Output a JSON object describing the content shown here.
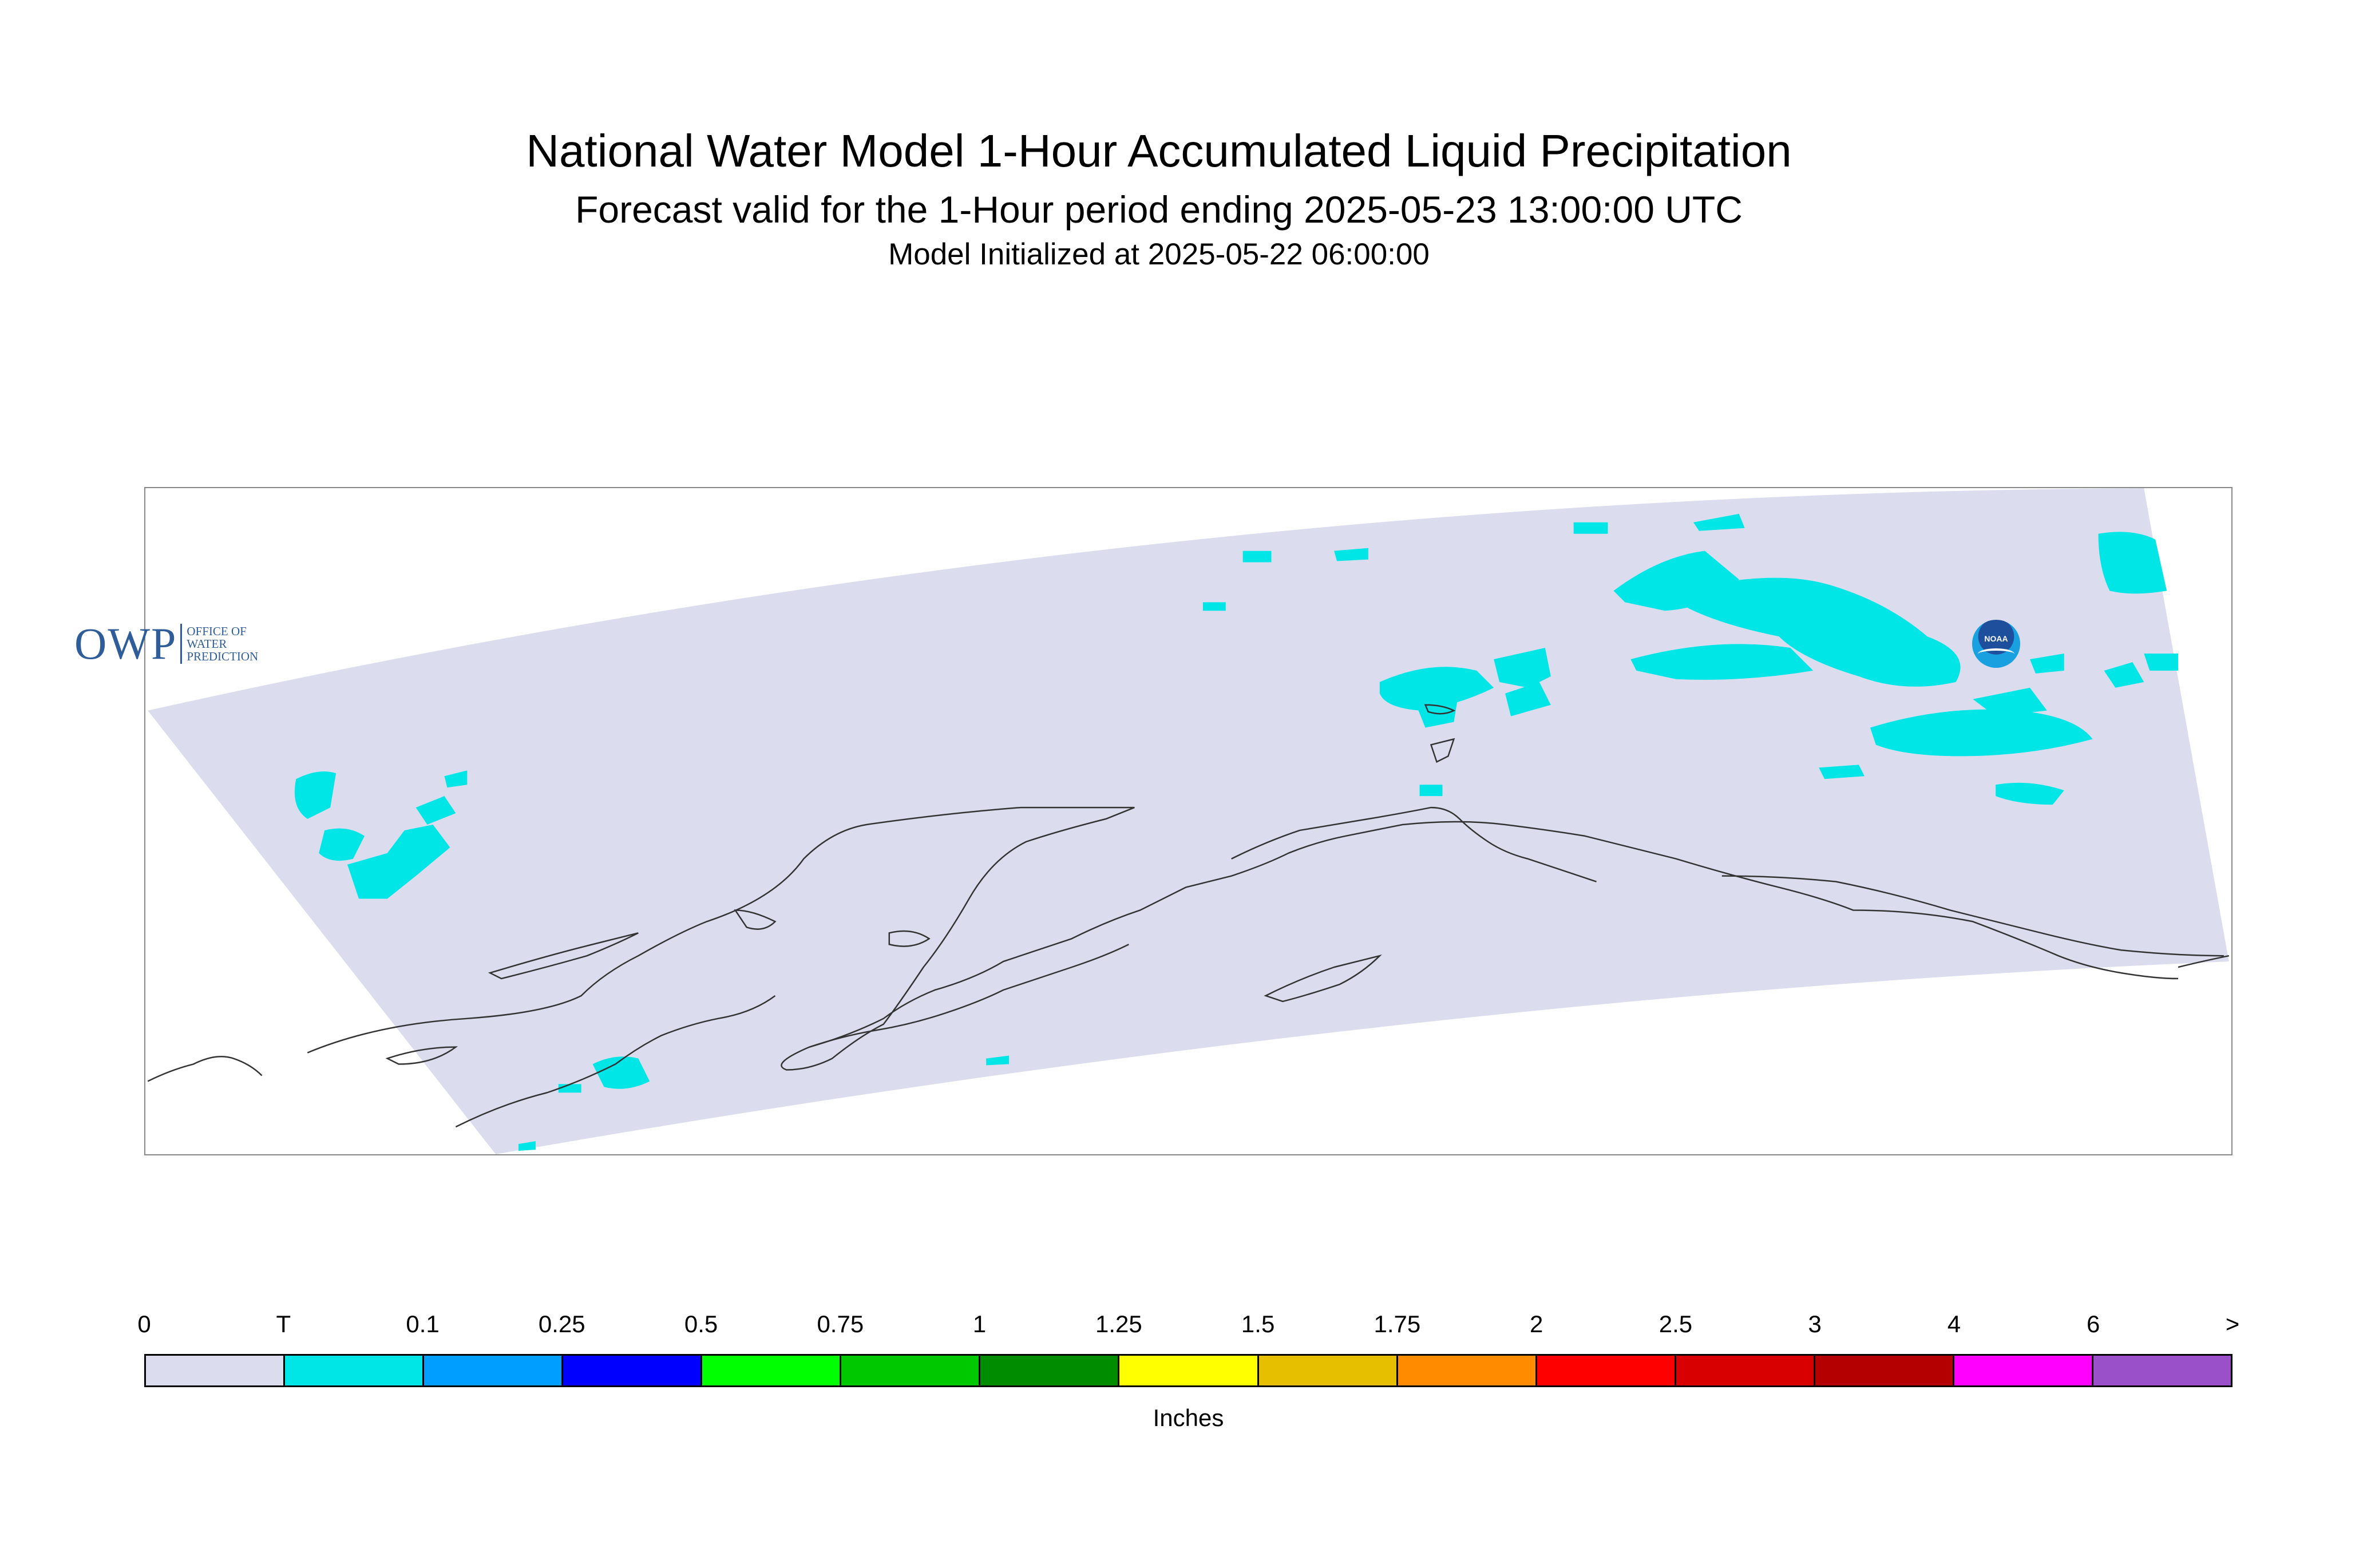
{
  "header": {
    "title": "National Water Model 1-Hour Accumulated Liquid Precipitation",
    "subtitle": "Forecast valid for the 1-Hour period ending 2025-05-23 13:00:00 UTC",
    "init": "Model Initialized at 2025-05-22 06:00:00"
  },
  "map": {
    "region": "Alaska",
    "domain_color": "#dcdcef",
    "precip_color": "#00e6e6",
    "coastline_color": "#333333"
  },
  "logos": {
    "owp_letters": "OWP",
    "owp_line1": "OFFICE OF",
    "owp_line2": "WATER",
    "owp_line3": "PREDICTION",
    "noaa": "NOAA"
  },
  "legend": {
    "ticks": [
      "0",
      "T",
      "0.1",
      "0.25",
      "0.5",
      "0.75",
      "1",
      "1.25",
      "1.5",
      "1.75",
      "2",
      "2.5",
      "3",
      "4",
      "6",
      ">"
    ],
    "colors": [
      "#dcdcef",
      "#00e6e6",
      "#009eff",
      "#0000ff",
      "#00ff00",
      "#00c800",
      "#008c00",
      "#ffff00",
      "#e6c000",
      "#ff8c00",
      "#ff0000",
      "#d80000",
      "#b40000",
      "#ff00ff",
      "#9a50c8"
    ],
    "units": "Inches"
  }
}
